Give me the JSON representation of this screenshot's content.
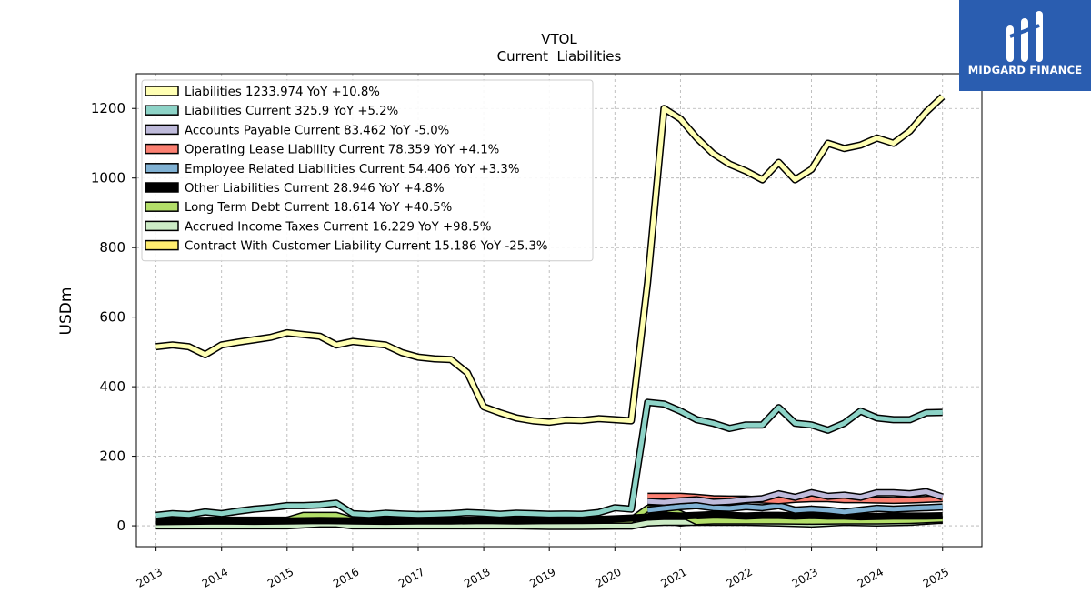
{
  "brand": {
    "name": "MIDGARD FINANCE",
    "bg": "#2a5db0"
  },
  "chart_data": {
    "type": "line",
    "title": "VTOL",
    "subtitle": "Current  Liabilities",
    "ylabel": "USDm",
    "xlabel": "",
    "xlim": [
      2012.7,
      2025.6
    ],
    "ylim": [
      -60,
      1300
    ],
    "yticks": [
      0,
      200,
      400,
      600,
      800,
      1000,
      1200
    ],
    "xticks": [
      2013,
      2014,
      2015,
      2016,
      2017,
      2018,
      2019,
      2020,
      2021,
      2022,
      2023,
      2024,
      2025
    ],
    "grid": true,
    "legend_position": "upper-left",
    "series": [
      {
        "name": "Liabilities",
        "legend": "Liabilities  1233.974 YoY +10.8%",
        "color": "#ffffb3",
        "x": [
          2013.0,
          2013.25,
          2013.5,
          2013.75,
          2014.0,
          2014.25,
          2014.5,
          2014.75,
          2015.0,
          2015.25,
          2015.5,
          2015.75,
          2016.0,
          2016.25,
          2016.5,
          2016.75,
          2017.0,
          2017.25,
          2017.5,
          2017.75,
          2018.0,
          2018.25,
          2018.5,
          2018.75,
          2019.0,
          2019.25,
          2019.5,
          2019.75,
          2020.0,
          2020.25,
          2020.5,
          2020.75,
          2021.0,
          2021.25,
          2021.5,
          2021.75,
          2022.0,
          2022.25,
          2022.5,
          2022.75,
          2023.0,
          2023.25,
          2023.5,
          2023.75,
          2024.0,
          2024.25,
          2024.5,
          2024.75,
          2025.0
        ],
        "values": [
          515,
          520,
          515,
          492,
          520,
          528,
          535,
          542,
          555,
          550,
          545,
          520,
          530,
          525,
          520,
          498,
          485,
          480,
          478,
          440,
          342,
          325,
          310,
          302,
          298,
          304,
          303,
          308,
          305,
          302,
          700,
          1200,
          1170,
          1115,
          1070,
          1040,
          1020,
          995,
          1045,
          995,
          1025,
          1100,
          1085,
          1095,
          1115,
          1100,
          1135,
          1190,
          1234
        ]
      },
      {
        "name": "Liabilities Current",
        "legend": "Liabilities Current  325.9 YoY +5.2%",
        "color": "#8dd3c7",
        "x": [
          2013.0,
          2013.25,
          2013.5,
          2013.75,
          2014.0,
          2014.25,
          2014.5,
          2014.75,
          2015.0,
          2015.25,
          2015.5,
          2015.75,
          2016.0,
          2016.25,
          2016.5,
          2016.75,
          2017.0,
          2017.25,
          2017.5,
          2017.75,
          2018.0,
          2018.25,
          2018.5,
          2018.75,
          2019.0,
          2019.25,
          2019.5,
          2019.75,
          2020.0,
          2020.25,
          2020.5,
          2020.75,
          2021.0,
          2021.25,
          2021.5,
          2021.75,
          2022.0,
          2022.25,
          2022.5,
          2022.75,
          2023.0,
          2023.25,
          2023.5,
          2023.75,
          2024.0,
          2024.25,
          2024.5,
          2024.75,
          2025.0
        ],
        "values": [
          30,
          35,
          32,
          40,
          35,
          42,
          48,
          52,
          58,
          58,
          60,
          65,
          35,
          32,
          36,
          34,
          32,
          33,
          35,
          38,
          36,
          33,
          36,
          35,
          33,
          34,
          33,
          38,
          52,
          48,
          355,
          350,
          330,
          305,
          295,
          280,
          290,
          290,
          340,
          295,
          290,
          275,
          295,
          330,
          310,
          305,
          305,
          325,
          326
        ]
      },
      {
        "name": "Accounts Payable Current",
        "legend": "Accounts Payable Current  83.462 YoY -5.0%",
        "color": "#bebada",
        "x": [
          2020.5,
          2020.75,
          2021.0,
          2021.25,
          2021.5,
          2021.75,
          2022.0,
          2022.25,
          2022.5,
          2022.75,
          2023.0,
          2023.25,
          2023.5,
          2023.75,
          2024.0,
          2024.25,
          2024.5,
          2024.75,
          2025.0
        ],
        "values": [
          70,
          68,
          72,
          75,
          68,
          70,
          75,
          78,
          92,
          82,
          95,
          85,
          88,
          82,
          95,
          95,
          92,
          98,
          83
        ]
      },
      {
        "name": "Operating Lease Liability Current",
        "legend": "Operating Lease Liability Current  78.359 YoY +4.1%",
        "color": "#fb8072",
        "x": [
          2020.5,
          2020.75,
          2021.0,
          2021.25,
          2021.5,
          2021.75,
          2022.0,
          2022.25,
          2022.5,
          2022.75,
          2023.0,
          2023.25,
          2023.5,
          2023.75,
          2024.0,
          2024.25,
          2024.5,
          2024.75,
          2025.0
        ],
        "values": [
          85,
          85,
          85,
          82,
          78,
          77,
          77,
          74,
          72,
          76,
          78,
          78,
          75,
          75,
          74,
          73,
          74,
          76,
          78
        ]
      },
      {
        "name": "Employee Related Liabilities Current",
        "legend": "Employee Related Liabilities Current  54.406 YoY +3.3%",
        "color": "#80b1d3",
        "x": [
          2020.5,
          2020.75,
          2021.0,
          2021.25,
          2021.5,
          2021.75,
          2022.0,
          2022.25,
          2022.5,
          2022.75,
          2023.0,
          2023.25,
          2023.5,
          2023.75,
          2024.0,
          2024.25,
          2024.5,
          2024.75,
          2025.0
        ],
        "values": [
          45,
          50,
          55,
          58,
          52,
          50,
          55,
          52,
          58,
          45,
          48,
          45,
          40,
          45,
          50,
          48,
          50,
          52,
          54
        ]
      },
      {
        "name": "Other Liabilities Current",
        "legend": "Other Liabilities Current  28.946 YoY +4.8%",
        "color": "#000000",
        "x": [
          2013.0,
          2013.5,
          2014.0,
          2014.5,
          2015.0,
          2015.5,
          2016.0,
          2016.5,
          2017.0,
          2017.5,
          2018.0,
          2018.5,
          2019.0,
          2019.5,
          2020.0,
          2020.25,
          2020.5,
          2020.75,
          2021.0,
          2021.25,
          2021.5,
          2021.75,
          2022.0,
          2022.25,
          2022.5,
          2022.75,
          2023.0,
          2023.25,
          2023.5,
          2023.75,
          2024.0,
          2024.25,
          2024.5,
          2024.75,
          2025.0
        ],
        "values": [
          12,
          13,
          14,
          13,
          14,
          15,
          14,
          13,
          14,
          14,
          15,
          14,
          15,
          16,
          20,
          22,
          25,
          30,
          28,
          30,
          32,
          30,
          28,
          30,
          30,
          28,
          30,
          28,
          28,
          26,
          27,
          28,
          28,
          28,
          29
        ]
      },
      {
        "name": "Long Term Debt Current",
        "legend": "Long Term Debt Current  18.614 YoY +40.5%",
        "color": "#b3de69",
        "x": [
          2013.0,
          2013.5,
          2014.0,
          2014.5,
          2015.0,
          2015.25,
          2015.5,
          2015.75,
          2016.0,
          2016.5,
          2017.0,
          2017.5,
          2018.0,
          2018.5,
          2019.0,
          2019.5,
          2020.0,
          2020.25,
          2020.5,
          2020.75,
          2021.0,
          2021.25,
          2021.5,
          2021.75,
          2022.0,
          2022.5,
          2023.0,
          2023.5,
          2024.0,
          2024.5,
          2025.0
        ],
        "values": [
          15,
          15,
          16,
          16,
          16,
          30,
          30,
          30,
          16,
          16,
          16,
          16,
          16,
          16,
          16,
          16,
          16,
          16,
          50,
          50,
          35,
          12,
          14,
          14,
          14,
          14,
          13,
          14,
          14,
          15,
          19
        ]
      },
      {
        "name": "Accrued Income Taxes Current",
        "legend": "Accrued Income Taxes Current  16.229 YoY +98.5%",
        "color": "#ccebc5",
        "x": [
          2013.0,
          2013.5,
          2014.0,
          2014.5,
          2015.0,
          2015.5,
          2015.75,
          2016.0,
          2016.5,
          2017.0,
          2017.5,
          2018.0,
          2018.5,
          2019.0,
          2019.5,
          2020.0,
          2020.25,
          2020.5,
          2020.75,
          2021.0,
          2021.5,
          2022.0,
          2022.5,
          2023.0,
          2023.5,
          2024.0,
          2024.5,
          2025.0
        ],
        "values": [
          0,
          0,
          0,
          0,
          0,
          5,
          5,
          0,
          0,
          0,
          0,
          0,
          0,
          -2,
          -2,
          -1,
          -1,
          8,
          10,
          10,
          10,
          10,
          8,
          5,
          10,
          8,
          10,
          16
        ]
      },
      {
        "name": "Contract With Customer Liability Current",
        "legend": "Contract With Customer Liability Current  15.186 YoY -25.3%",
        "color": "#ffed6f",
        "x": [
          2020.25,
          2020.5,
          2020.75,
          2021.0,
          2021.25,
          2021.5,
          2021.75,
          2022.0,
          2022.25,
          2022.5,
          2022.75,
          2023.0,
          2023.25,
          2023.5,
          2023.75,
          2024.0,
          2024.25,
          2024.5,
          2024.75,
          2025.0
        ],
        "values": [
          10,
          30,
          15,
          8,
          12,
          12,
          12,
          12,
          12,
          10,
          10,
          10,
          12,
          15,
          18,
          20,
          22,
          20,
          18,
          15
        ]
      }
    ]
  }
}
